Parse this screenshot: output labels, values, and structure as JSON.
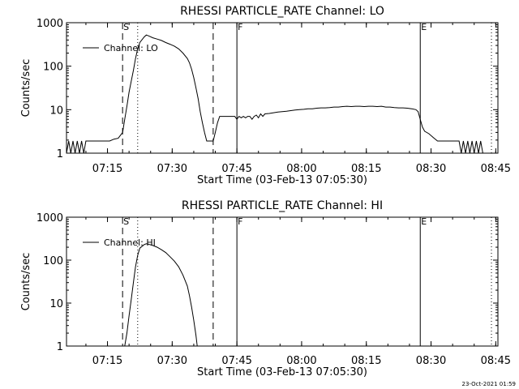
{
  "footer_timestamp": "23-Oct-2021 01:59",
  "chart_data": [
    {
      "type": "line",
      "title": "RHESSI PARTICLE_RATE Channel: LO",
      "xlabel": "Start Time (03-Feb-13 07:05:30)",
      "ylabel": "Counts/sec",
      "yscale": "log",
      "ylim": [
        1,
        1000
      ],
      "xlim_minutes": [
        0,
        100
      ],
      "x_ticks": [
        {
          "t": 9.5,
          "label": "07:15"
        },
        {
          "t": 24.5,
          "label": "07:30"
        },
        {
          "t": 39.5,
          "label": "07:45"
        },
        {
          "t": 54.5,
          "label": "08:00"
        },
        {
          "t": 69.5,
          "label": "08:15"
        },
        {
          "t": 84.5,
          "label": "08:30"
        },
        {
          "t": 99.5,
          "label": "08:45"
        }
      ],
      "y_ticks": [
        {
          "v": 1,
          "label": "1"
        },
        {
          "v": 10,
          "label": "10"
        },
        {
          "v": 100,
          "label": "100"
        },
        {
          "v": 1000,
          "label": "1000"
        }
      ],
      "legend": "Channel: LO",
      "legend_position": "top-left",
      "markers": [
        {
          "t": 13.0,
          "style": "dashed",
          "label": "S"
        },
        {
          "t": 16.5,
          "style": "dotted",
          "label": ""
        },
        {
          "t": 34.0,
          "style": "dashed",
          "label": ""
        },
        {
          "t": 39.5,
          "style": "solid",
          "label": "F"
        },
        {
          "t": 82.0,
          "style": "solid",
          "label": "E"
        },
        {
          "t": 98.5,
          "style": "dotted",
          "label": ""
        }
      ],
      "series": [
        {
          "name": "Channel: LO",
          "points": [
            [
              0,
              1
            ],
            [
              0.5,
              1.9
            ],
            [
              1,
              1
            ],
            [
              1.5,
              1.9
            ],
            [
              2,
              1
            ],
            [
              2.5,
              1.9
            ],
            [
              3,
              1
            ],
            [
              3.5,
              1.9
            ],
            [
              4,
              1
            ],
            [
              4.5,
              1.9
            ],
            [
              5,
              1.9
            ],
            [
              6,
              1.9
            ],
            [
              7,
              1.9
            ],
            [
              8,
              1.9
            ],
            [
              9,
              1.9
            ],
            [
              10,
              1.9
            ],
            [
              11,
              2.1
            ],
            [
              12,
              2.2
            ],
            [
              13,
              3
            ],
            [
              13.5,
              6
            ],
            [
              14,
              12
            ],
            [
              14.5,
              25
            ],
            [
              15,
              45
            ],
            [
              15.5,
              80
            ],
            [
              16,
              150
            ],
            [
              16.5,
              250
            ],
            [
              17,
              350
            ],
            [
              18,
              470
            ],
            [
              18.5,
              520
            ],
            [
              19,
              500
            ],
            [
              20,
              450
            ],
            [
              21,
              420
            ],
            [
              22,
              390
            ],
            [
              23,
              350
            ],
            [
              24,
              320
            ],
            [
              25,
              290
            ],
            [
              26,
              250
            ],
            [
              27,
              200
            ],
            [
              28,
              150
            ],
            [
              28.5,
              120
            ],
            [
              29,
              85
            ],
            [
              29.5,
              55
            ],
            [
              30,
              32
            ],
            [
              30.5,
              18
            ],
            [
              31,
              9
            ],
            [
              31.5,
              5
            ],
            [
              32,
              3
            ],
            [
              32.5,
              1.9
            ],
            [
              33,
              1.9
            ],
            [
              34,
              1.9
            ],
            [
              34.5,
              3
            ],
            [
              35,
              5
            ],
            [
              35.5,
              7
            ],
            [
              36,
              7
            ],
            [
              37,
              7
            ],
            [
              38,
              7
            ],
            [
              39,
              7
            ],
            [
              39.5,
              6
            ],
            [
              40,
              7
            ],
            [
              40.5,
              6.5
            ],
            [
              41,
              7
            ],
            [
              41.5,
              6.5
            ],
            [
              42,
              7
            ],
            [
              42.5,
              7
            ],
            [
              43,
              6
            ],
            [
              43.5,
              7
            ],
            [
              44,
              7.5
            ],
            [
              44.5,
              6.5
            ],
            [
              45,
              8
            ],
            [
              45.5,
              7
            ],
            [
              46,
              8
            ],
            [
              47,
              8.2
            ],
            [
              48,
              8.5
            ],
            [
              49,
              8.8
            ],
            [
              50,
              9
            ],
            [
              51,
              9.2
            ],
            [
              52,
              9.5
            ],
            [
              53,
              9.8
            ],
            [
              54,
              10
            ],
            [
              55,
              10.2
            ],
            [
              56,
              10.5
            ],
            [
              57,
              10.5
            ],
            [
              58,
              10.8
            ],
            [
              59,
              11
            ],
            [
              60,
              11
            ],
            [
              61,
              11.2
            ],
            [
              62,
              11.5
            ],
            [
              63,
              11.5
            ],
            [
              64,
              11.8
            ],
            [
              65,
              12
            ],
            [
              66,
              11.8
            ],
            [
              67,
              12
            ],
            [
              68,
              12
            ],
            [
              69,
              11.8
            ],
            [
              70,
              12
            ],
            [
              71,
              12
            ],
            [
              72,
              11.8
            ],
            [
              73,
              12
            ],
            [
              74,
              11.5
            ],
            [
              75,
              11.5
            ],
            [
              76,
              11.2
            ],
            [
              77,
              11
            ],
            [
              78,
              11
            ],
            [
              79,
              10.8
            ],
            [
              80,
              10.5
            ],
            [
              81,
              10
            ],
            [
              81.5,
              9
            ],
            [
              82,
              6
            ],
            [
              82.5,
              4
            ],
            [
              83,
              3.2
            ],
            [
              84,
              2.8
            ],
            [
              85,
              2.3
            ],
            [
              86,
              1.9
            ],
            [
              87,
              1.9
            ],
            [
              88,
              1.9
            ],
            [
              89,
              1.9
            ],
            [
              90,
              1.9
            ],
            [
              91,
              1.9
            ],
            [
              91.5,
              1
            ],
            [
              92,
              1.9
            ],
            [
              92.5,
              1
            ],
            [
              93,
              1.9
            ],
            [
              93.5,
              1
            ],
            [
              94,
              1.9
            ],
            [
              94.5,
              1
            ],
            [
              95,
              1.9
            ],
            [
              95.5,
              1
            ],
            [
              96,
              1.9
            ],
            [
              96.5,
              1
            ],
            [
              97,
              1
            ]
          ]
        }
      ]
    },
    {
      "type": "line",
      "title": "RHESSI PARTICLE_RATE Channel: HI",
      "xlabel": "Start Time (03-Feb-13 07:05:30)",
      "ylabel": "Counts/sec",
      "yscale": "log",
      "ylim": [
        1,
        1000
      ],
      "xlim_minutes": [
        0,
        100
      ],
      "x_ticks": [
        {
          "t": 9.5,
          "label": "07:15"
        },
        {
          "t": 24.5,
          "label": "07:30"
        },
        {
          "t": 39.5,
          "label": "07:45"
        },
        {
          "t": 54.5,
          "label": "08:00"
        },
        {
          "t": 69.5,
          "label": "08:15"
        },
        {
          "t": 84.5,
          "label": "08:30"
        },
        {
          "t": 99.5,
          "label": "08:45"
        }
      ],
      "y_ticks": [
        {
          "v": 1,
          "label": "1"
        },
        {
          "v": 10,
          "label": "10"
        },
        {
          "v": 100,
          "label": "100"
        },
        {
          "v": 1000,
          "label": "1000"
        }
      ],
      "legend": "Channel: HI",
      "legend_position": "top-left",
      "markers": [
        {
          "t": 13.0,
          "style": "dashed",
          "label": "S"
        },
        {
          "t": 16.5,
          "style": "dotted",
          "label": ""
        },
        {
          "t": 34.0,
          "style": "dashed",
          "label": ""
        },
        {
          "t": 39.5,
          "style": "solid",
          "label": "F"
        },
        {
          "t": 82.0,
          "style": "solid",
          "label": "E"
        },
        {
          "t": 98.5,
          "style": "dotted",
          "label": ""
        }
      ],
      "series": [
        {
          "name": "Channel: HI",
          "points": [
            [
              13.5,
              1
            ],
            [
              14,
              2
            ],
            [
              14.5,
              5
            ],
            [
              15,
              12
            ],
            [
              15.5,
              30
            ],
            [
              16,
              70
            ],
            [
              16.5,
              130
            ],
            [
              17,
              190
            ],
            [
              18,
              230
            ],
            [
              18.5,
              240
            ],
            [
              19,
              235
            ],
            [
              20,
              220
            ],
            [
              21,
              200
            ],
            [
              22,
              175
            ],
            [
              23,
              150
            ],
            [
              24,
              120
            ],
            [
              25,
              95
            ],
            [
              26,
              70
            ],
            [
              27,
              45
            ],
            [
              28,
              25
            ],
            [
              28.5,
              15
            ],
            [
              29,
              8
            ],
            [
              29.5,
              4
            ],
            [
              30,
              1.8
            ],
            [
              30.3,
              1
            ]
          ]
        }
      ]
    }
  ]
}
